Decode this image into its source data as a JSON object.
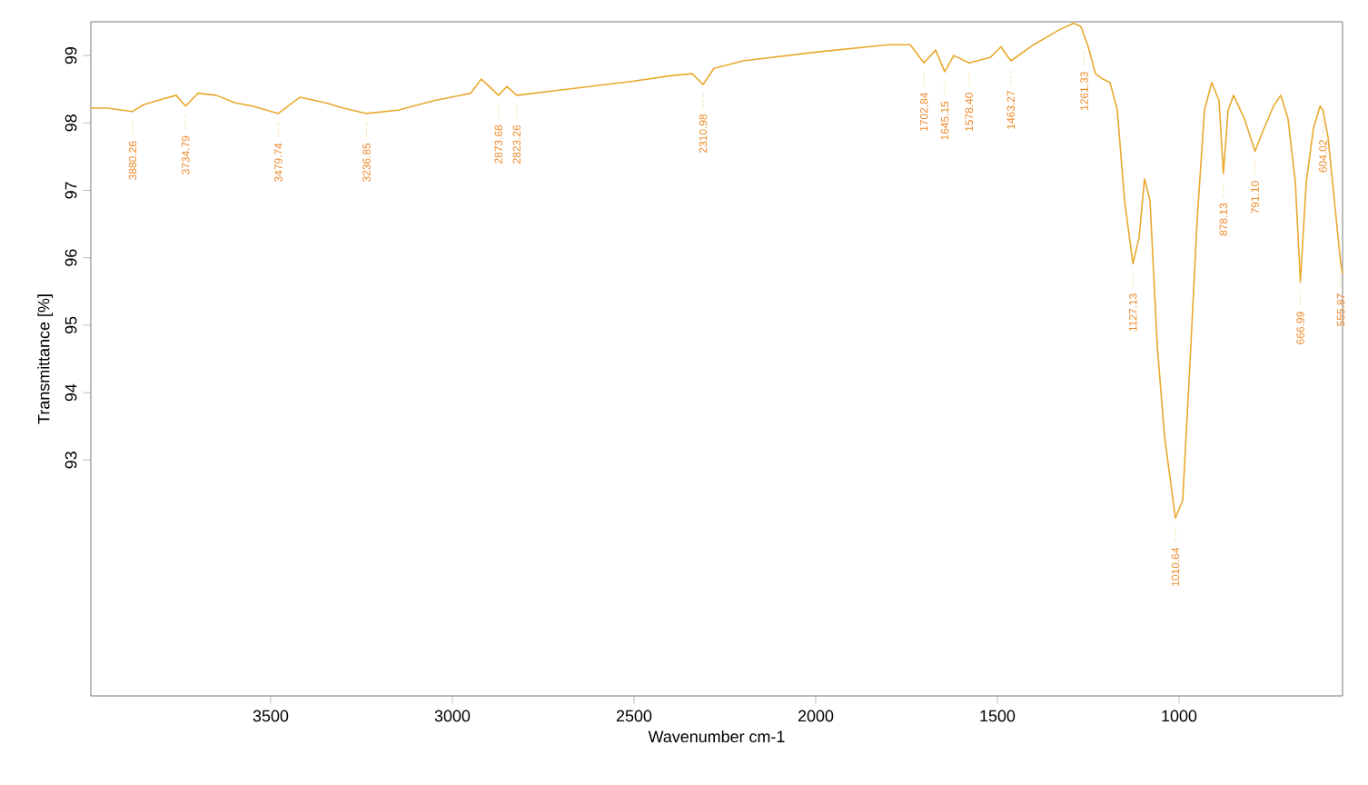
{
  "chart_data": {
    "type": "line",
    "xlabel": "Wavenumber cm-1",
    "ylabel": "Transmittance [%]",
    "xlim": [
      3995,
      550
    ],
    "ylim": [
      89.5,
      99.5
    ],
    "xticks": [
      3500,
      3000,
      2500,
      2000,
      1500,
      1000
    ],
    "yticks": [
      93,
      94,
      95,
      96,
      97,
      98,
      99
    ],
    "grid": false,
    "series": [
      {
        "color": "#e8a92e",
        "x": [
          3995,
          3950,
          3880,
          3850,
          3800,
          3760,
          3734,
          3700,
          3650,
          3600,
          3550,
          3479,
          3420,
          3350,
          3300,
          3236,
          3150,
          3050,
          2950,
          2920,
          2873,
          2850,
          2823,
          2700,
          2500,
          2400,
          2340,
          2310,
          2280,
          2200,
          2000,
          1800,
          1740,
          1702,
          1670,
          1645,
          1620,
          1578,
          1520,
          1490,
          1463,
          1400,
          1330,
          1290,
          1270,
          1250,
          1230,
          1210,
          1190,
          1170,
          1150,
          1127,
          1110,
          1095,
          1080,
          1060,
          1040,
          1010,
          990,
          970,
          950,
          930,
          910,
          890,
          878,
          865,
          850,
          820,
          791,
          770,
          740,
          720,
          700,
          680,
          666,
          650,
          630,
          612,
          604,
          590,
          570,
          555,
          550
        ],
        "values": [
          98.22,
          98.22,
          98.17,
          98.27,
          98.35,
          98.41,
          98.25,
          98.44,
          98.41,
          98.3,
          98.25,
          98.14,
          98.38,
          98.3,
          98.22,
          98.14,
          98.19,
          98.33,
          98.44,
          98.65,
          98.41,
          98.54,
          98.41,
          98.49,
          98.62,
          98.7,
          98.73,
          98.57,
          98.81,
          98.92,
          99.05,
          99.16,
          99.16,
          98.89,
          99.08,
          98.76,
          99.0,
          98.89,
          98.97,
          99.13,
          98.92,
          99.16,
          99.38,
          99.48,
          99.43,
          99.13,
          98.73,
          98.65,
          98.6,
          98.19,
          96.85,
          95.91,
          96.3,
          97.17,
          96.85,
          94.7,
          93.35,
          92.14,
          92.4,
          94.43,
          96.58,
          98.19,
          98.6,
          98.33,
          97.25,
          98.19,
          98.41,
          98.06,
          97.58,
          97.87,
          98.25,
          98.41,
          98.06,
          97.12,
          95.64,
          97.12,
          97.92,
          98.25,
          98.19,
          97.79,
          96.71,
          95.91,
          95.77
        ]
      }
    ],
    "annotations": [
      {
        "text": "3880.26",
        "x": 3880,
        "y": 98.17
      },
      {
        "text": "3734.79",
        "x": 3734,
        "y": 98.25
      },
      {
        "text": "3479.74",
        "x": 3479,
        "y": 98.14
      },
      {
        "text": "3236.85",
        "x": 3236,
        "y": 98.14
      },
      {
        "text": "2873.68",
        "x": 2873,
        "y": 98.41
      },
      {
        "text": "2823.26",
        "x": 2823,
        "y": 98.41
      },
      {
        "text": "2310.98",
        "x": 2310,
        "y": 98.57
      },
      {
        "text": "1702.84",
        "x": 1702,
        "y": 98.89
      },
      {
        "text": "1645.15",
        "x": 1645,
        "y": 98.76
      },
      {
        "text": "1578.40",
        "x": 1578,
        "y": 98.89
      },
      {
        "text": "1463.27",
        "x": 1463,
        "y": 98.92
      },
      {
        "text": "1261.33",
        "x": 1261,
        "y": 99.2
      },
      {
        "text": "1127.13",
        "x": 1127,
        "y": 95.91
      },
      {
        "text": "1010.64",
        "x": 1010,
        "y": 92.14
      },
      {
        "text": "878.13",
        "x": 878,
        "y": 97.25
      },
      {
        "text": "791.10",
        "x": 791,
        "y": 97.58
      },
      {
        "text": "666.99",
        "x": 666,
        "y": 95.64
      },
      {
        "text": "604.02",
        "x": 604,
        "y": 98.19
      },
      {
        "text": "555.87",
        "x": 555,
        "y": 95.91
      }
    ]
  }
}
